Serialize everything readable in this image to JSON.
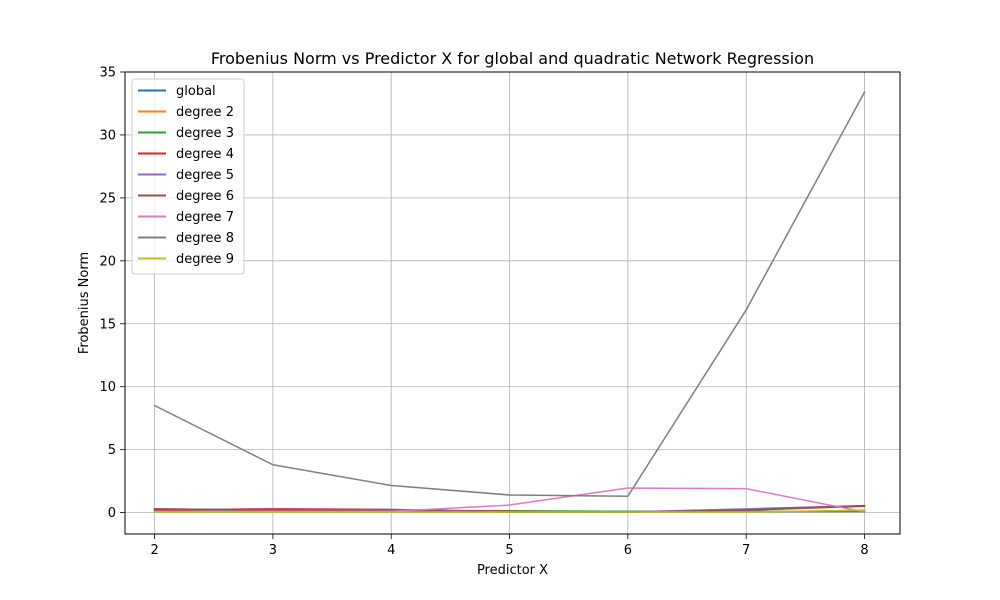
{
  "chart_data": {
    "type": "line",
    "title": "Frobenius Norm vs Predictor X for global and quadratic Network Regression",
    "xlabel": "Predictor X",
    "ylabel": "Frobenius Norm",
    "x": [
      2,
      3,
      4,
      5,
      6,
      7,
      8
    ],
    "xlim": [
      1.75,
      8.3
    ],
    "ylim": [
      -1.7,
      35
    ],
    "xticks": [
      2,
      3,
      4,
      5,
      6,
      7,
      8
    ],
    "yticks": [
      0,
      5,
      10,
      15,
      20,
      25,
      30,
      35
    ],
    "grid": true,
    "legend_position": "top-left",
    "series": [
      {
        "name": "global",
        "color": "#1f77b4",
        "values": [
          0.1,
          0.1,
          0.1,
          0.1,
          0.1,
          0.1,
          0.1
        ]
      },
      {
        "name": "degree 2",
        "color": "#ff7f0e",
        "values": [
          0.1,
          0.1,
          0.1,
          0.1,
          0.1,
          0.1,
          0.1
        ]
      },
      {
        "name": "degree 3",
        "color": "#2ca02c",
        "values": [
          0.2,
          0.2,
          0.15,
          0.15,
          0.1,
          0.1,
          0.1
        ]
      },
      {
        "name": "degree 4",
        "color": "#d62728",
        "values": [
          0.2,
          0.3,
          0.25,
          0.1,
          0.05,
          0.2,
          0.5
        ]
      },
      {
        "name": "degree 5",
        "color": "#9467bd",
        "values": [
          0.3,
          0.2,
          0.25,
          0.05,
          0.05,
          0.3,
          0.55
        ]
      },
      {
        "name": "degree 6",
        "color": "#8c564b",
        "values": [
          0.3,
          0.2,
          0.2,
          0.05,
          0.05,
          0.2,
          0.55
        ]
      },
      {
        "name": "degree 7",
        "color": "#e377c2",
        "values": [
          0.1,
          0.1,
          0.1,
          0.6,
          1.95,
          1.9,
          0.05
        ]
      },
      {
        "name": "degree 8",
        "color": "#7f7f7f",
        "values": [
          8.5,
          3.8,
          2.15,
          1.4,
          1.3,
          16.1,
          33.4
        ]
      },
      {
        "name": "degree 9",
        "color": "#bcbd22",
        "values": [
          0.05,
          0.05,
          0.05,
          0.05,
          0.05,
          0.05,
          0.2
        ]
      }
    ]
  }
}
